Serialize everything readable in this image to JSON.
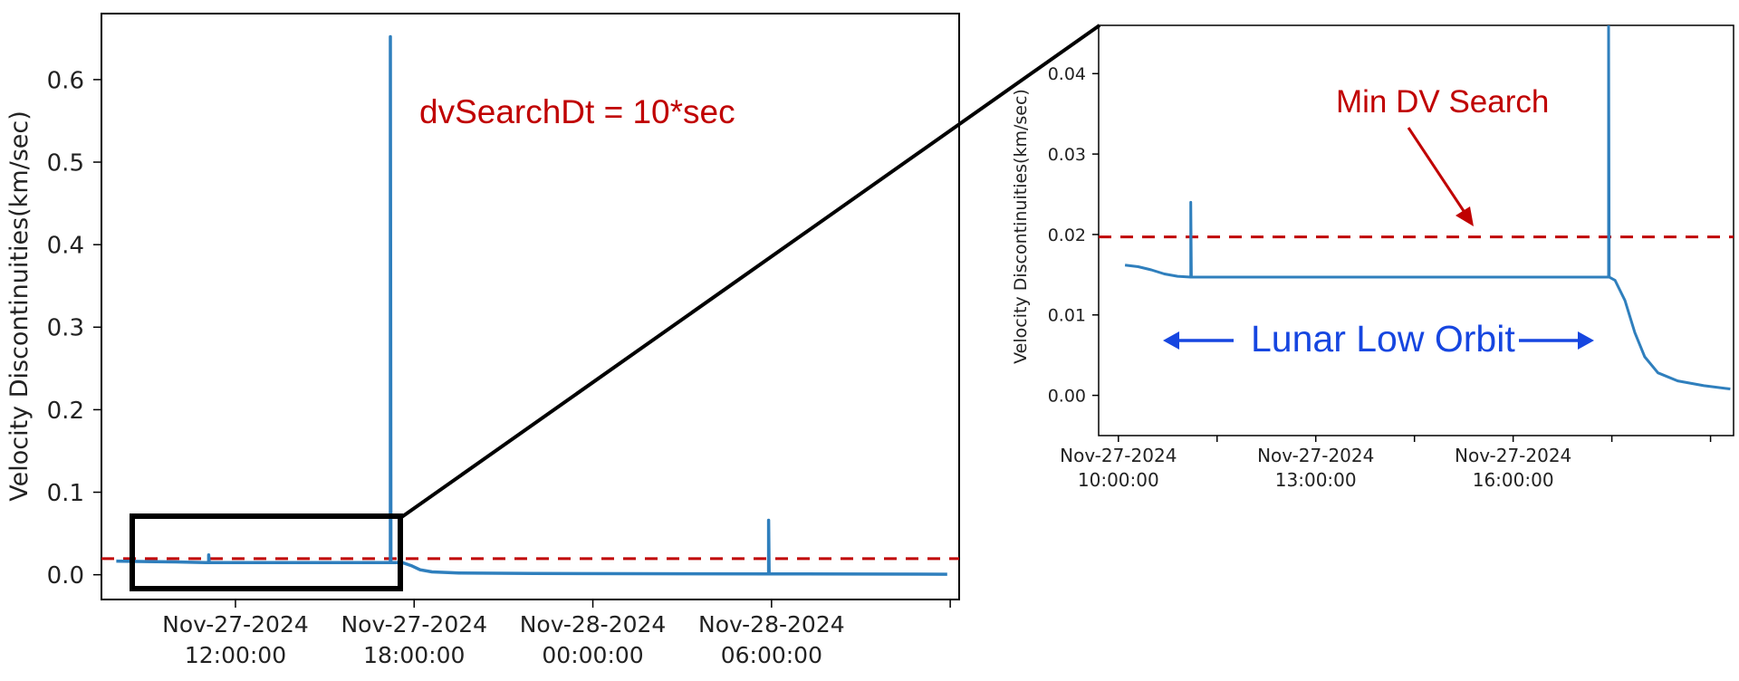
{
  "colors": {
    "series": "#2f7fbd",
    "threshold": "#c00000",
    "annotation_red": "#c00000",
    "annotation_blue": "#1646e0",
    "axes": "#000000"
  },
  "chart_data": [
    {
      "type": "line",
      "xlabel": "",
      "ylabel": "Velocity Discontinuities(km/sec)",
      "x_unit": "hours since Nov-27-2024 00:00:00",
      "ylim": [
        -0.03,
        0.68
      ],
      "xlim": [
        7.5,
        36.3
      ],
      "x_ticks": [
        {
          "x": 12,
          "line1": "Nov-27-2024",
          "line2": "12:00:00"
        },
        {
          "x": 18,
          "line1": "Nov-27-2024",
          "line2": "18:00:00"
        },
        {
          "x": 24,
          "line1": "Nov-28-2024",
          "line2": "00:00:00"
        },
        {
          "x": 30,
          "line1": "Nov-28-2024",
          "line2": "06:00:00"
        },
        {
          "x": 36,
          "line1": "",
          "line2": ""
        }
      ],
      "y_ticks": [
        "0.0",
        "0.1",
        "0.2",
        "0.3",
        "0.4",
        "0.5",
        "0.6"
      ],
      "y_tick_values": [
        0.0,
        0.1,
        0.2,
        0.3,
        0.4,
        0.5,
        0.6
      ],
      "threshold": 0.0195,
      "grid": false,
      "annotations": [
        "dvSearchDt = 10*sec"
      ],
      "series": [
        {
          "points": [
            [
              8.0,
              0.0165
            ],
            [
              9.0,
              0.016
            ],
            [
              10.0,
              0.0155
            ],
            [
              11.0,
              0.0148
            ],
            [
              11.1,
              0.0148
            ],
            [
              11.1,
              0.024
            ],
            [
              11.12,
              0.0148
            ],
            [
              14.0,
              0.0148
            ],
            [
              17.2,
              0.0148
            ],
            [
              17.2,
              0.652
            ],
            [
              17.22,
              0.0148
            ],
            [
              17.6,
              0.0148
            ],
            [
              17.9,
              0.011
            ],
            [
              18.2,
              0.006
            ],
            [
              18.6,
              0.0035
            ],
            [
              19.5,
              0.0022
            ],
            [
              22.0,
              0.0015
            ],
            [
              29.9,
              0.0011
            ],
            [
              29.9,
              0.066
            ],
            [
              29.92,
              0.0011
            ],
            [
              33.0,
              0.0008
            ],
            [
              35.9,
              0.0006
            ]
          ]
        }
      ]
    },
    {
      "type": "line",
      "xlabel": "",
      "ylabel": "Velocity Discontinuities(km/sec)",
      "x_unit": "hours since Nov-27-2024 00:00:00",
      "ylim": [
        -0.005,
        0.046
      ],
      "xlim": [
        9.7,
        19.35
      ],
      "x_ticks": [
        {
          "x": 10,
          "line1": "Nov-27-2024",
          "line2": "10:00:00"
        },
        {
          "x": 11.5,
          "line1": "",
          "line2": ""
        },
        {
          "x": 13,
          "line1": "Nov-27-2024",
          "line2": "13:00:00"
        },
        {
          "x": 14.5,
          "line1": "",
          "line2": ""
        },
        {
          "x": 16,
          "line1": "Nov-27-2024",
          "line2": "16:00:00"
        },
        {
          "x": 17.5,
          "line1": "",
          "line2": ""
        },
        {
          "x": 19,
          "line1": "",
          "line2": ""
        }
      ],
      "y_ticks": [
        "0.00",
        "0.01",
        "0.02",
        "0.03",
        "0.04"
      ],
      "y_tick_values": [
        0.0,
        0.01,
        0.02,
        0.03,
        0.04
      ],
      "threshold": 0.0197,
      "grid": false,
      "annotations": [
        "Min DV Search",
        "Lunar Low Orbit"
      ],
      "series": [
        {
          "points": [
            [
              10.1,
              0.0162
            ],
            [
              10.3,
              0.016
            ],
            [
              10.5,
              0.0156
            ],
            [
              10.7,
              0.0151
            ],
            [
              10.9,
              0.0148
            ],
            [
              11.1,
              0.0147
            ],
            [
              11.1,
              0.024
            ],
            [
              11.11,
              0.0147
            ],
            [
              13.0,
              0.0147
            ],
            [
              15.0,
              0.0147
            ],
            [
              17.45,
              0.0147
            ],
            [
              17.45,
              0.0465
            ],
            [
              17.46,
              0.0147
            ],
            [
              17.55,
              0.0143
            ],
            [
              17.7,
              0.0118
            ],
            [
              17.85,
              0.0078
            ],
            [
              18.0,
              0.0048
            ],
            [
              18.2,
              0.0028
            ],
            [
              18.5,
              0.0018
            ],
            [
              18.9,
              0.0012
            ],
            [
              19.3,
              0.0008
            ]
          ]
        }
      ]
    }
  ]
}
